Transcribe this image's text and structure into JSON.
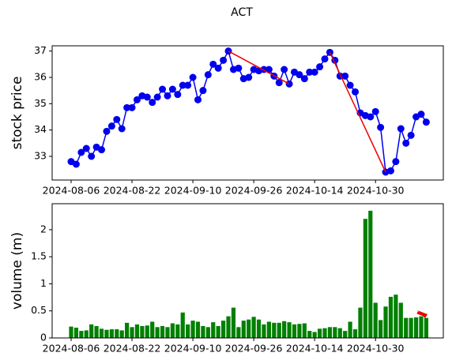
{
  "title": "ACT",
  "chart_data": [
    {
      "type": "line",
      "ylabel": "stock price",
      "ylabel_color": "#1f1fbf",
      "categories": [
        "2024-08-06",
        null,
        null,
        null,
        null,
        null,
        null,
        null,
        null,
        null,
        null,
        null,
        "2024-08-22",
        null,
        null,
        null,
        null,
        null,
        null,
        null,
        null,
        null,
        null,
        null,
        "2024-09-10",
        null,
        null,
        null,
        null,
        null,
        null,
        null,
        null,
        null,
        null,
        null,
        "2024-09-26",
        null,
        null,
        null,
        null,
        null,
        null,
        null,
        null,
        null,
        null,
        null,
        "2024-10-14",
        null,
        null,
        null,
        null,
        null,
        null,
        null,
        null,
        null,
        null,
        null,
        "2024-10-30",
        null,
        null,
        null,
        null,
        null,
        null,
        null,
        null,
        null,
        null
      ],
      "series": [
        {
          "color": "#0000ee",
          "values": [
            32.8,
            32.7,
            33.15,
            33.3,
            33.0,
            33.35,
            33.25,
            33.95,
            34.15,
            34.4,
            34.05,
            34.85,
            34.85,
            35.15,
            35.3,
            35.25,
            35.05,
            35.25,
            35.55,
            35.3,
            35.55,
            35.35,
            35.7,
            35.7,
            36.0,
            35.15,
            35.5,
            36.1,
            36.5,
            36.35,
            36.65,
            37.0,
            36.3,
            36.35,
            35.95,
            36.0,
            36.3,
            36.25,
            36.3,
            36.3,
            36.05,
            35.8,
            36.3,
            35.75,
            36.2,
            36.1,
            35.95,
            36.2,
            36.2,
            36.4,
            36.7,
            36.95,
            36.65,
            36.05,
            36.05,
            35.7,
            35.45,
            34.65,
            34.55,
            34.5,
            34.7,
            34.1,
            32.4,
            32.45,
            32.8,
            34.05,
            33.5,
            33.8,
            34.5,
            34.6,
            34.3
          ]
        }
      ],
      "trend_lines": [
        {
          "color": "#ee0000",
          "x": [
            31,
            43
          ],
          "values": [
            37.0,
            35.75
          ]
        },
        {
          "color": "#ee0000",
          "x": [
            51,
            62
          ],
          "values": [
            36.95,
            32.4
          ]
        }
      ],
      "ylim": [
        32.1,
        37.2
      ],
      "yticks": [
        33,
        34,
        35,
        36,
        37
      ]
    },
    {
      "type": "bar",
      "ylabel": "volume (m)",
      "ylabel_color": "#138013",
      "color": "#008000",
      "categories": [
        "2024-08-06",
        null,
        null,
        null,
        null,
        null,
        null,
        null,
        null,
        null,
        null,
        null,
        "2024-08-22",
        null,
        null,
        null,
        null,
        null,
        null,
        null,
        null,
        null,
        null,
        null,
        "2024-09-10",
        null,
        null,
        null,
        null,
        null,
        null,
        null,
        null,
        null,
        null,
        null,
        "2024-09-26",
        null,
        null,
        null,
        null,
        null,
        null,
        null,
        null,
        null,
        null,
        null,
        "2024-10-14",
        null,
        null,
        null,
        null,
        null,
        null,
        null,
        null,
        null,
        null,
        null,
        "2024-10-30",
        null,
        null,
        null,
        null,
        null,
        null,
        null,
        null,
        null,
        null
      ],
      "values": [
        0.21,
        0.19,
        0.13,
        0.14,
        0.25,
        0.22,
        0.17,
        0.15,
        0.16,
        0.16,
        0.14,
        0.28,
        0.2,
        0.25,
        0.22,
        0.23,
        0.3,
        0.2,
        0.22,
        0.2,
        0.27,
        0.25,
        0.47,
        0.25,
        0.32,
        0.3,
        0.22,
        0.2,
        0.29,
        0.22,
        0.32,
        0.4,
        0.56,
        0.2,
        0.32,
        0.34,
        0.39,
        0.34,
        0.25,
        0.3,
        0.28,
        0.28,
        0.31,
        0.29,
        0.25,
        0.26,
        0.27,
        0.13,
        0.11,
        0.17,
        0.18,
        0.2,
        0.2,
        0.18,
        0.13,
        0.3,
        0.16,
        0.56,
        2.2,
        2.35,
        0.65,
        0.33,
        0.58,
        0.76,
        0.8,
        0.65,
        0.37,
        0.37,
        0.38,
        0.4,
        0.37
      ],
      "ylim": [
        0,
        2.48
      ],
      "yticks": [
        0.0,
        0.5,
        1.0,
        1.5,
        2.0
      ]
    }
  ]
}
